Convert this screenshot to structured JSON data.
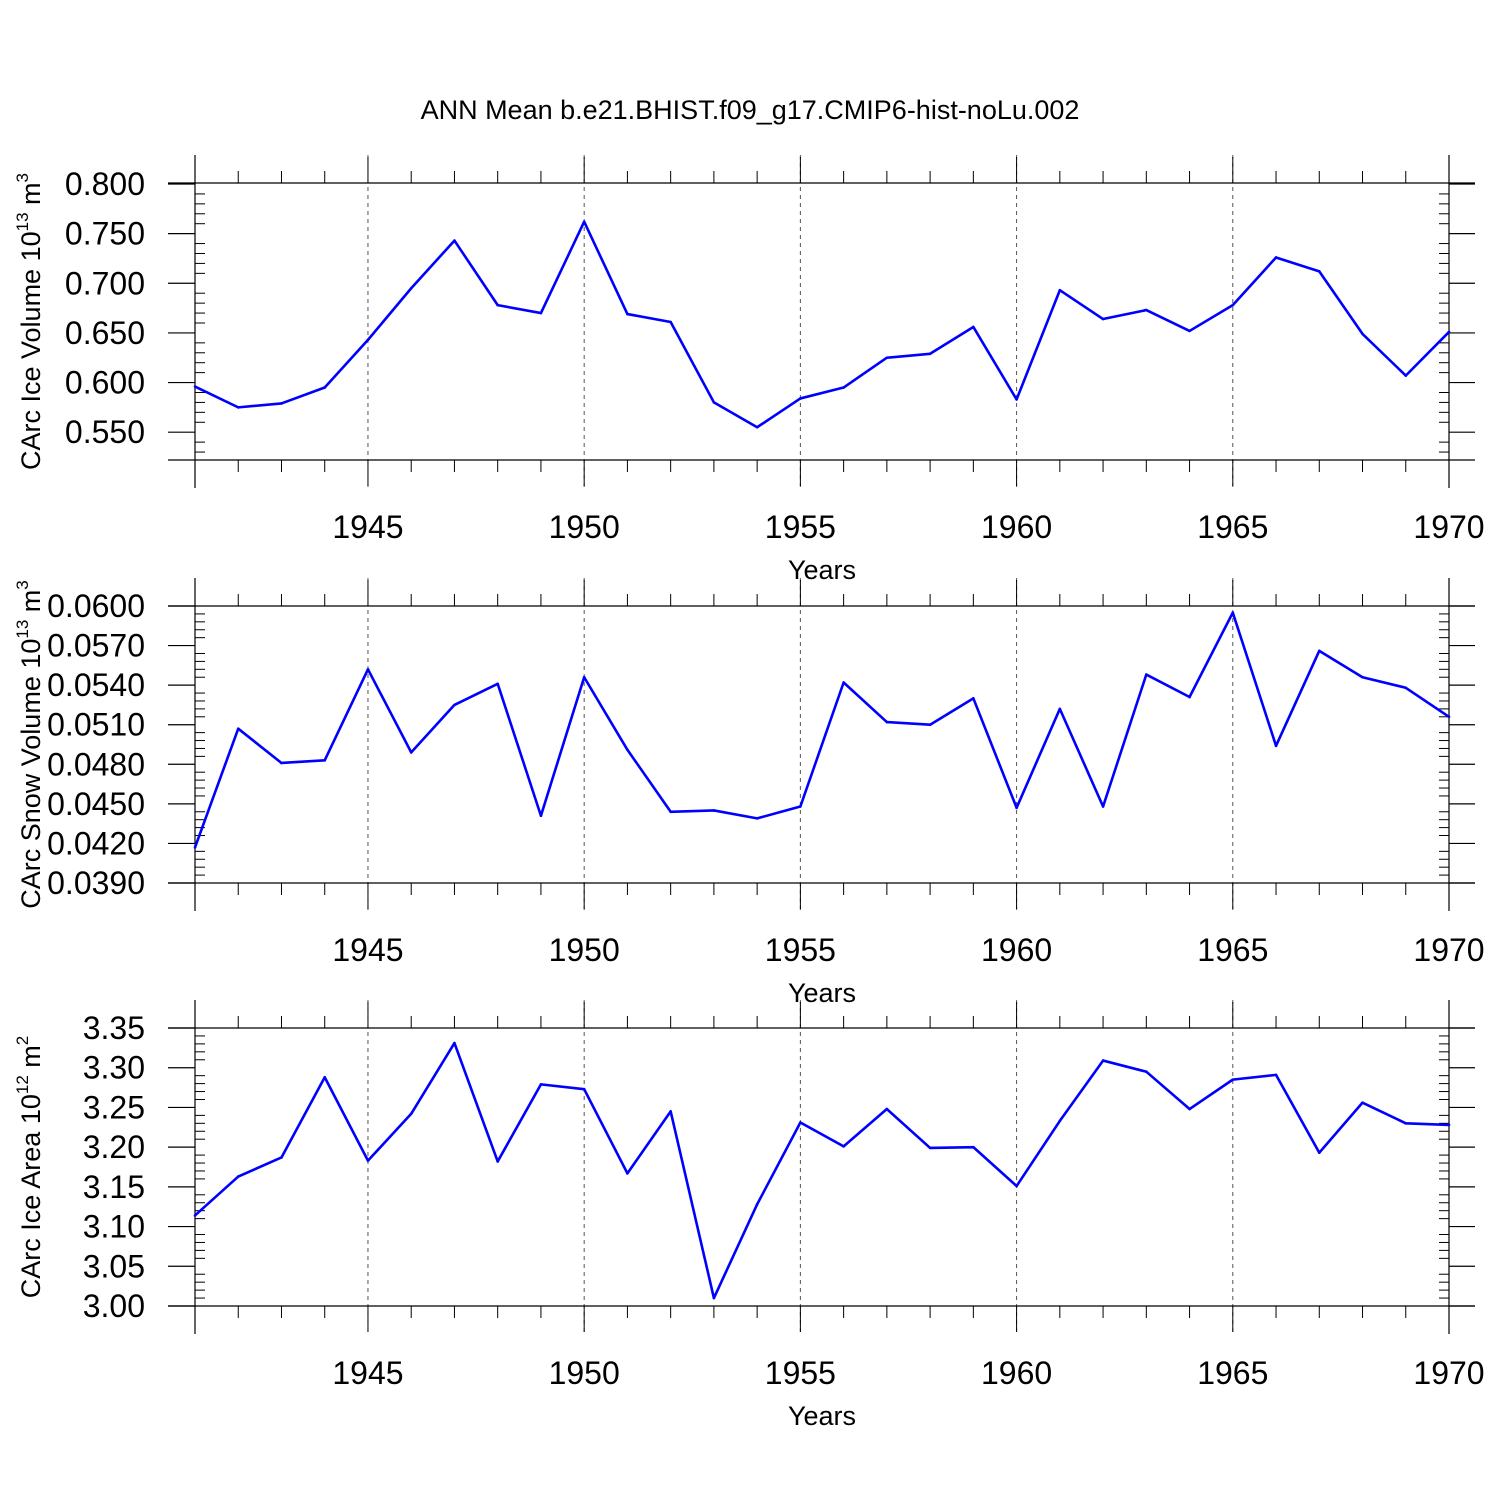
{
  "figure": {
    "title": "ANN Mean b.e21.BHIST.f09_g17.CMIP6-hist-noLu.002"
  },
  "style": {
    "line_color": "#0000ff",
    "axis_color": "#000000",
    "grid_color": "#555555",
    "background": "#ffffff"
  },
  "chart_data": [
    {
      "type": "line",
      "id": "ice-volume",
      "ylabel": "CArc Ice Volume 10",
      "ylabel_exp": "13",
      "ylabel_unit": " m",
      "ylabel_unit_exp": "3",
      "xlabel": "Years",
      "xlim": [
        1941,
        1970
      ],
      "ylim": [
        0.522,
        0.801
      ],
      "yticks": [
        0.55,
        0.6,
        0.65,
        0.7,
        0.75,
        0.8
      ],
      "ytick_labels": [
        "0.550",
        "0.600",
        "0.650",
        "0.700",
        "0.750",
        "0.800"
      ],
      "xticks": [
        1945,
        1950,
        1955,
        1960,
        1965,
        1970
      ],
      "xtick_labels": [
        "1945",
        "1950",
        "1955",
        "1960",
        "1965",
        "1970"
      ],
      "vgrid": [
        1945,
        1950,
        1955,
        1960,
        1965
      ],
      "x": [
        1941,
        1942,
        1943,
        1944,
        1945,
        1946,
        1947,
        1948,
        1949,
        1950,
        1951,
        1952,
        1953,
        1954,
        1955,
        1956,
        1957,
        1958,
        1959,
        1960,
        1961,
        1962,
        1963,
        1964,
        1965,
        1966,
        1967,
        1968,
        1969,
        1970
      ],
      "series": [
        {
          "name": "CArc Ice Volume",
          "values": [
            0.596,
            0.575,
            0.579,
            0.595,
            0.643,
            0.695,
            0.743,
            0.678,
            0.67,
            0.762,
            0.669,
            0.661,
            0.58,
            0.555,
            0.584,
            0.595,
            0.625,
            0.629,
            0.656,
            0.583,
            0.693,
            0.664,
            0.673,
            0.652,
            0.678,
            0.726,
            0.712,
            0.649,
            0.607,
            0.651
          ]
        }
      ]
    },
    {
      "type": "line",
      "id": "snow-volume",
      "ylabel": "CArc Snow Volume 10",
      "ylabel_exp": "13",
      "ylabel_unit": " m",
      "ylabel_unit_exp": "3",
      "xlabel": "Years",
      "xlim": [
        1941,
        1970
      ],
      "ylim": [
        0.039,
        0.06
      ],
      "yticks": [
        0.039,
        0.042,
        0.045,
        0.048,
        0.051,
        0.054,
        0.057,
        0.06
      ],
      "ytick_labels": [
        "0.0390",
        "0.0420",
        "0.0450",
        "0.0480",
        "0.0510",
        "0.0540",
        "0.0570",
        "0.0600"
      ],
      "xticks": [
        1945,
        1950,
        1955,
        1960,
        1965,
        1970
      ],
      "xtick_labels": [
        "1945",
        "1950",
        "1955",
        "1960",
        "1965",
        "1970"
      ],
      "vgrid": [
        1945,
        1950,
        1955,
        1960,
        1965
      ],
      "x": [
        1941,
        1942,
        1943,
        1944,
        1945,
        1946,
        1947,
        1948,
        1949,
        1950,
        1951,
        1952,
        1953,
        1954,
        1955,
        1956,
        1957,
        1958,
        1959,
        1960,
        1961,
        1962,
        1963,
        1964,
        1965,
        1966,
        1967,
        1968,
        1969,
        1970
      ],
      "series": [
        {
          "name": "CArc Snow Volume",
          "values": [
            0.0417,
            0.0507,
            0.0481,
            0.0483,
            0.0552,
            0.0489,
            0.0525,
            0.0541,
            0.0441,
            0.0546,
            0.0491,
            0.0444,
            0.0445,
            0.0439,
            0.0448,
            0.0542,
            0.0512,
            0.051,
            0.053,
            0.0447,
            0.0522,
            0.0448,
            0.0548,
            0.0531,
            0.0595,
            0.0494,
            0.0566,
            0.0546,
            0.0538,
            0.0516
          ]
        }
      ]
    },
    {
      "type": "line",
      "id": "ice-area",
      "ylabel": "CArc Ice Area 10",
      "ylabel_exp": "12",
      "ylabel_unit": " m",
      "ylabel_unit_exp": "2",
      "xlabel": "Years",
      "xlim": [
        1941,
        1970
      ],
      "ylim": [
        3.0,
        3.35
      ],
      "yticks": [
        3.0,
        3.05,
        3.1,
        3.15,
        3.2,
        3.25,
        3.3,
        3.35
      ],
      "ytick_labels": [
        "3.00",
        "3.05",
        "3.10",
        "3.15",
        "3.20",
        "3.25",
        "3.30",
        "3.35"
      ],
      "xticks": [
        1945,
        1950,
        1955,
        1960,
        1965,
        1970
      ],
      "xtick_labels": [
        "1945",
        "1950",
        "1955",
        "1960",
        "1965",
        "1970"
      ],
      "vgrid": [
        1945,
        1950,
        1955,
        1960,
        1965
      ],
      "x": [
        1941,
        1942,
        1943,
        1944,
        1945,
        1946,
        1947,
        1948,
        1949,
        1950,
        1951,
        1952,
        1953,
        1954,
        1955,
        1956,
        1957,
        1958,
        1959,
        1960,
        1961,
        1962,
        1963,
        1964,
        1965,
        1966,
        1967,
        1968,
        1969,
        1970
      ],
      "series": [
        {
          "name": "CArc Ice Area",
          "values": [
            3.114,
            3.163,
            3.187,
            3.288,
            3.183,
            3.242,
            3.331,
            3.182,
            3.279,
            3.273,
            3.167,
            3.245,
            3.01,
            3.128,
            3.231,
            3.201,
            3.248,
            3.199,
            3.2,
            3.151,
            3.233,
            3.309,
            3.295,
            3.248,
            3.285,
            3.291,
            3.193,
            3.256,
            3.23,
            3.228
          ]
        }
      ]
    }
  ]
}
